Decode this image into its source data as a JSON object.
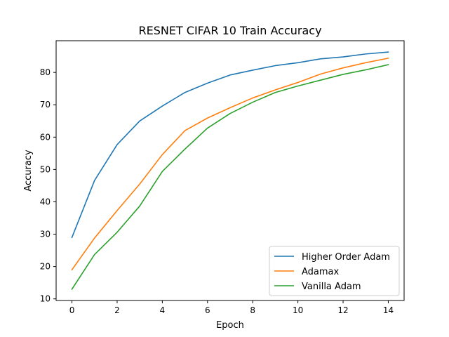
{
  "chart_data": {
    "type": "line",
    "title": "RESNET CIFAR 10 Train Accuracy",
    "xlabel": "Epoch",
    "ylabel": "Accuracy",
    "x": [
      0,
      1,
      2,
      3,
      4,
      5,
      6,
      7,
      8,
      9,
      10,
      11,
      12,
      13,
      14
    ],
    "xlim": [
      -0.7,
      14.7
    ],
    "ylim": [
      9.5,
      89.8
    ],
    "xticks": [
      0,
      2,
      4,
      6,
      8,
      10,
      12,
      14
    ],
    "yticks": [
      10,
      20,
      30,
      40,
      50,
      60,
      70,
      80
    ],
    "grid": false,
    "legend_position": "lower-right",
    "series": [
      {
        "name": "Higher Order Adam",
        "color": "#1f77b4",
        "values": [
          29.0,
          46.6,
          57.7,
          65.0,
          69.6,
          73.8,
          76.7,
          79.2,
          80.7,
          82.1,
          83.0,
          84.2,
          84.8,
          85.7,
          86.3
        ]
      },
      {
        "name": "Adamax",
        "color": "#ff7f0e",
        "values": [
          19.0,
          28.8,
          37.3,
          45.5,
          54.6,
          62.0,
          65.9,
          69.1,
          72.1,
          74.6,
          76.9,
          79.5,
          81.4,
          83.0,
          84.4
        ]
      },
      {
        "name": "Vanilla Adam",
        "color": "#2ca02c",
        "values": [
          13.0,
          23.7,
          30.6,
          38.7,
          49.4,
          56.3,
          62.8,
          67.3,
          70.8,
          73.8,
          75.8,
          77.6,
          79.4,
          80.8,
          82.4
        ]
      }
    ]
  }
}
